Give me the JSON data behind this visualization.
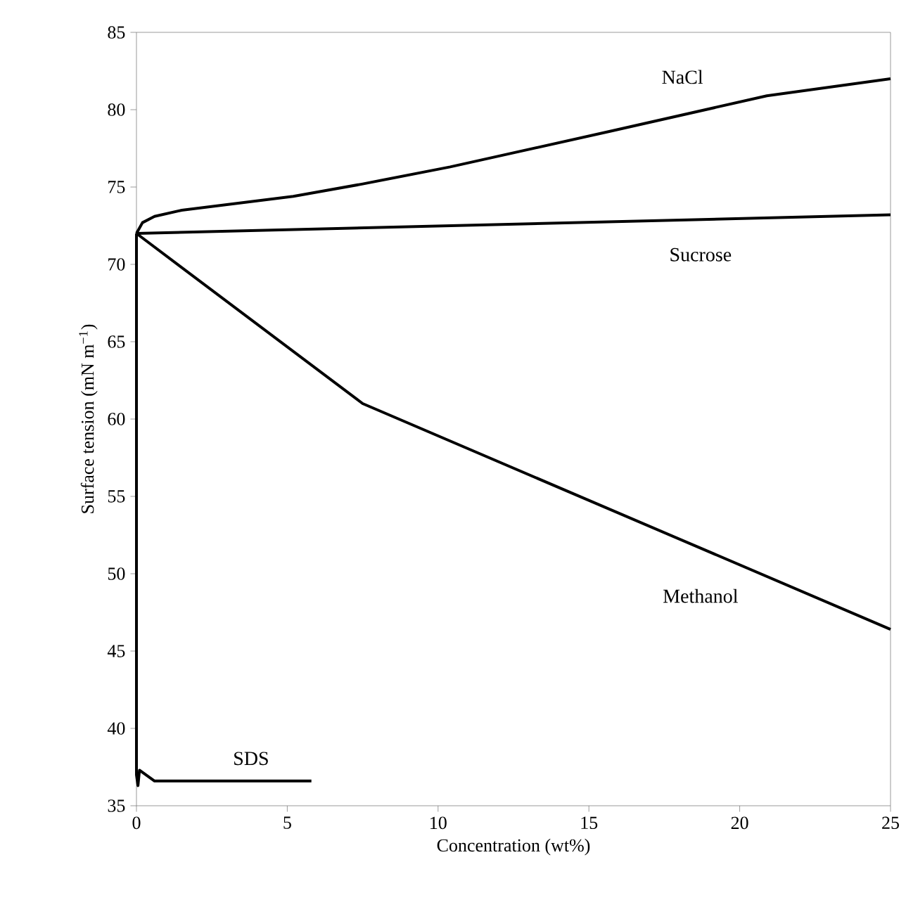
{
  "chart_data": {
    "type": "line",
    "xlabel": "Concentration (wt%)",
    "ylabel": "Surface tension (mN m$^{−1}$)",
    "xlim": [
      0,
      25
    ],
    "ylim": [
      35,
      85
    ],
    "xticks": [
      0,
      5,
      10,
      15,
      20,
      25
    ],
    "yticks": [
      35,
      40,
      45,
      50,
      55,
      60,
      65,
      70,
      75,
      80,
      85
    ],
    "grid": false,
    "legend": false,
    "marker": "none",
    "line_style": "solid",
    "series": [
      {
        "name": "NaCl",
        "color": "#000000",
        "x": [
          0,
          0.2,
          0.6,
          1.5,
          5.2,
          7.5,
          10.4,
          15.7,
          20.9,
          25
        ],
        "values": [
          72,
          72.7,
          73.1,
          73.5,
          74.4,
          75.2,
          76.3,
          78.6,
          80.9,
          82
        ]
      },
      {
        "name": "Sucrose",
        "color": "#000000",
        "x": [
          0,
          25
        ],
        "values": [
          72,
          73.2
        ]
      },
      {
        "name": "Methanol",
        "color": "#000000",
        "x": [
          0,
          7.5,
          25
        ],
        "values": [
          72,
          61,
          46.4
        ]
      },
      {
        "name": "SDS",
        "color": "#000000",
        "x": [
          0,
          0,
          0.05,
          0.1,
          0.6,
          5.8
        ],
        "values": [
          72,
          37,
          36.3,
          37.3,
          36.6,
          36.6
        ]
      }
    ]
  }
}
